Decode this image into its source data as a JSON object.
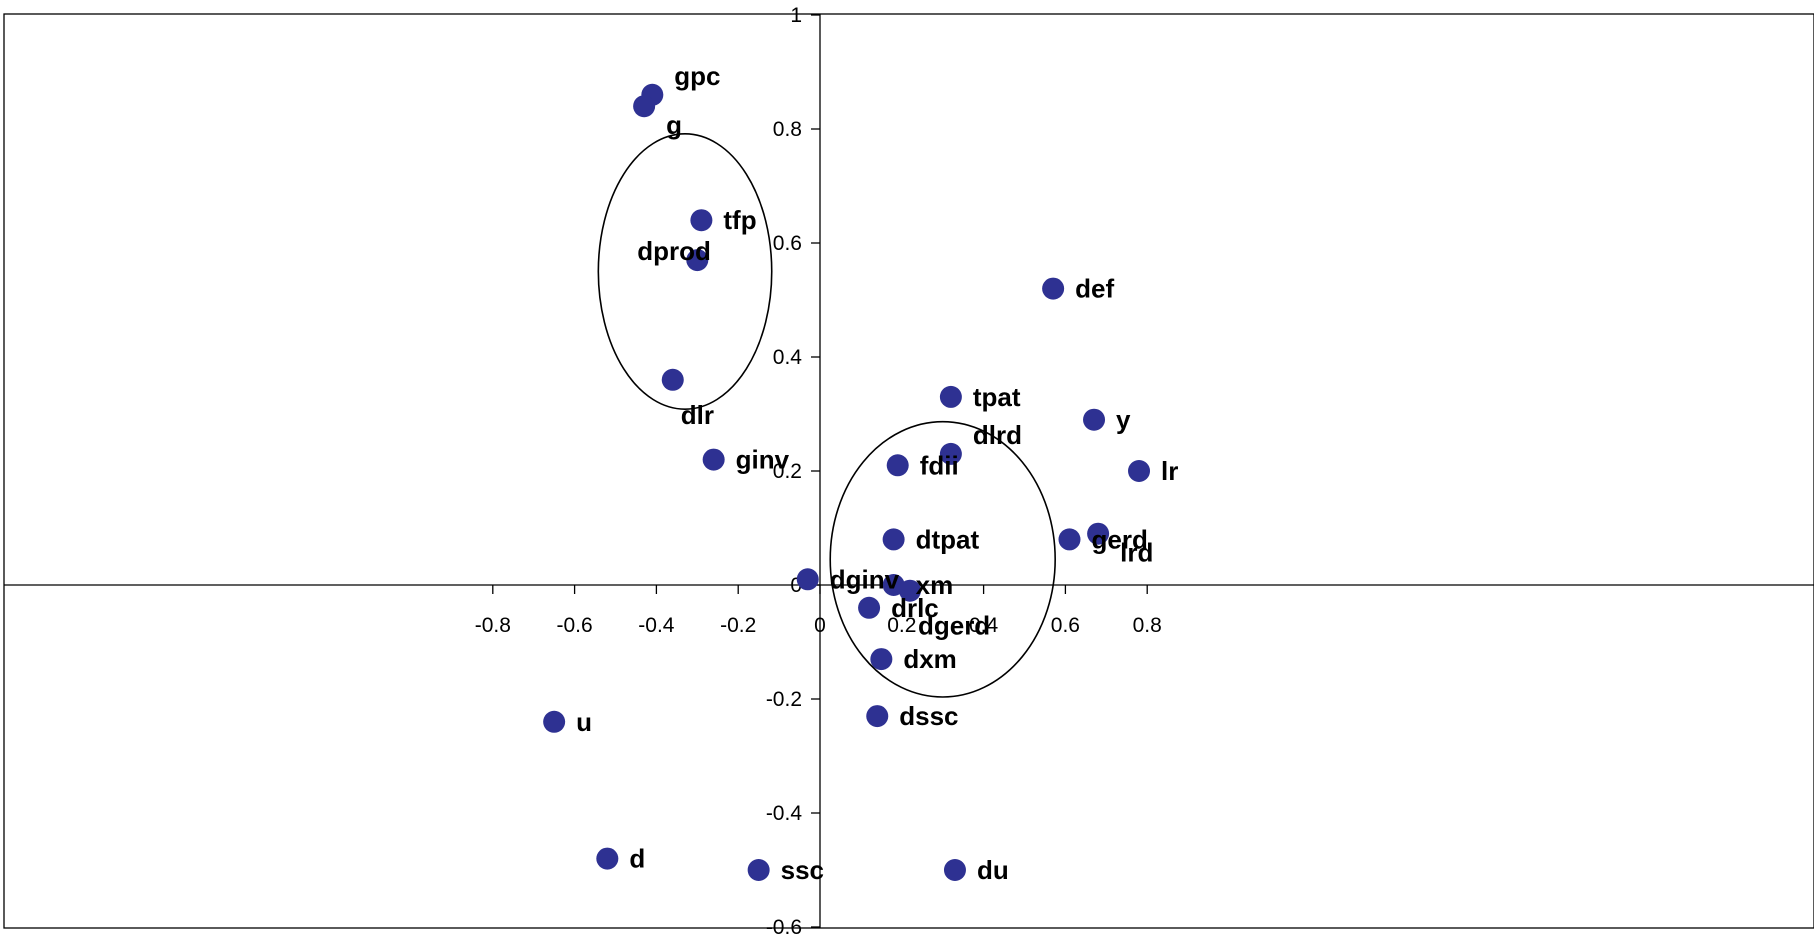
{
  "chart_data": {
    "type": "scatter",
    "title": "",
    "xlabel": "",
    "ylabel": "",
    "xlim": [
      -0.8,
      1.0
    ],
    "ylim": [
      -0.6,
      1.0
    ],
    "grid": false,
    "legend": "none",
    "marker_color": "#2E3192",
    "x_ticks": [
      -0.8,
      -0.6,
      -0.4,
      -0.2,
      0,
      0.2,
      0.4,
      0.6,
      0.8
    ],
    "x_tick_labels": [
      "-0.8",
      "-0.6",
      "-0.4",
      "-0.2",
      "0",
      "0.2",
      "0.4",
      "0.6",
      "0.8"
    ],
    "y_ticks": [
      -0.6,
      -0.4,
      -0.2,
      0,
      0.2,
      0.4,
      0.6,
      0.8,
      1
    ],
    "y_tick_labels": [
      "-0.6",
      "-0.4",
      "-0.2",
      "0",
      "0.2",
      "0.4",
      "0.6",
      "0.8",
      "1"
    ],
    "points": [
      {
        "label": "gpc",
        "x": -0.41,
        "y": 0.86,
        "label_pos": "upper-right"
      },
      {
        "label": "g",
        "x": -0.43,
        "y": 0.84,
        "label_pos": "lower-right"
      },
      {
        "label": "tfp",
        "x": -0.29,
        "y": 0.64,
        "label_pos": "right"
      },
      {
        "label": "dprod",
        "x": -0.3,
        "y": 0.57,
        "label_pos": "upper-left"
      },
      {
        "label": "dlr",
        "x": -0.36,
        "y": 0.36,
        "label_pos": "below"
      },
      {
        "label": "ginv",
        "x": -0.26,
        "y": 0.22,
        "label_pos": "right"
      },
      {
        "label": "def",
        "x": 0.57,
        "y": 0.52,
        "label_pos": "right"
      },
      {
        "label": "tpat",
        "x": 0.32,
        "y": 0.33,
        "label_pos": "right"
      },
      {
        "label": "dlrd",
        "x": 0.32,
        "y": 0.23,
        "label_pos": "upper-right"
      },
      {
        "label": "y",
        "x": 0.67,
        "y": 0.29,
        "label_pos": "right"
      },
      {
        "label": "lr",
        "x": 0.78,
        "y": 0.2,
        "label_pos": "right"
      },
      {
        "label": "fdii",
        "x": 0.19,
        "y": 0.21,
        "label_pos": "right"
      },
      {
        "label": "gerd",
        "x": 0.61,
        "y": 0.08,
        "label_pos": "right"
      },
      {
        "label": "lrd",
        "x": 0.68,
        "y": 0.09,
        "label_pos": "lower-right"
      },
      {
        "label": "dtpat",
        "x": 0.18,
        "y": 0.08,
        "label_pos": "right"
      },
      {
        "label": "dginv",
        "x": -0.03,
        "y": 0.01,
        "label_pos": "right"
      },
      {
        "label": "xm",
        "x": 0.18,
        "y": 0.0,
        "label_pos": "right"
      },
      {
        "label": "dgerd",
        "x": 0.22,
        "y": -0.01,
        "label_pos": "below"
      },
      {
        "label": "drlc",
        "x": 0.12,
        "y": -0.04,
        "label_pos": "right"
      },
      {
        "label": "dxm",
        "x": 0.15,
        "y": -0.13,
        "label_pos": "right"
      },
      {
        "label": "dssc",
        "x": 0.14,
        "y": -0.23,
        "label_pos": "right"
      },
      {
        "label": "u",
        "x": -0.65,
        "y": -0.24,
        "label_pos": "right"
      },
      {
        "label": "d",
        "x": -0.52,
        "y": -0.48,
        "label_pos": "right"
      },
      {
        "label": "ssc",
        "x": -0.15,
        "y": -0.5,
        "label_pos": "right"
      },
      {
        "label": "du",
        "x": 0.33,
        "y": -0.5,
        "label_pos": "right"
      }
    ],
    "clusters": [
      {
        "cx": -0.33,
        "cy": 0.55,
        "rx": 0.212,
        "ry": 0.42
      },
      {
        "cx": 0.3,
        "cy": 0.045,
        "rx": 0.275,
        "ry": 0.42
      }
    ]
  }
}
